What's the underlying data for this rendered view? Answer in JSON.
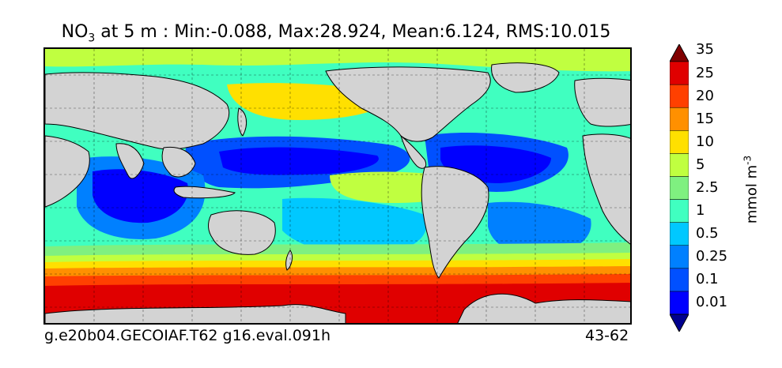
{
  "title": {
    "variable": "NO",
    "variable_sub": "3",
    "rest": " at 5 m : Min:-0.088, Max:28.924, Mean:6.124, RMS:10.015"
  },
  "footer": {
    "left": "g.e20b04.GECOIAF.T62 g16.eval.091h",
    "right": "43-62"
  },
  "colorbar": {
    "unit_base": "mmol m",
    "unit_exp": "-3",
    "levels": [
      "0.01",
      "0.1",
      "0.25",
      "0.5",
      "1",
      "2.5",
      "5",
      "10",
      "15",
      "20",
      "25",
      "35"
    ],
    "colors": [
      "#00008f",
      "#0000ff",
      "#0050ff",
      "#0080ff",
      "#00c8ff",
      "#40ffc0",
      "#7ff080",
      "#c0ff40",
      "#ffe000",
      "#ff9000",
      "#ff4000",
      "#e00000",
      "#800000"
    ]
  },
  "map": {
    "land_color": "#d3d3d3",
    "gridline_style": "dashed"
  }
}
